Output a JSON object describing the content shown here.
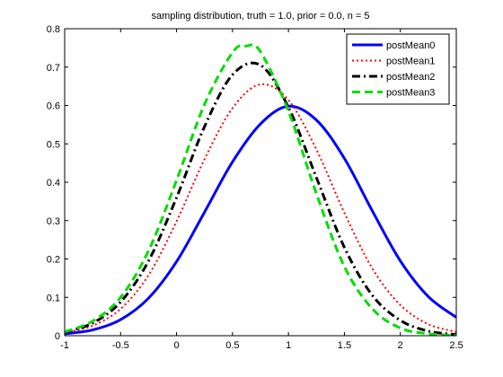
{
  "chart_data": {
    "type": "line",
    "title": "sampling distribution, truth = 1.0, prior = 0.0, n = 5",
    "xlabel": "",
    "ylabel": "",
    "xlim": [
      -1,
      2.5
    ],
    "ylim": [
      0,
      0.8
    ],
    "xticks": [
      -1,
      -0.5,
      0,
      0.5,
      1,
      1.5,
      2,
      2.5
    ],
    "yticks": [
      0,
      0.1,
      0.2,
      0.3,
      0.4,
      0.5,
      0.6,
      0.7,
      0.8
    ],
    "xtick_labels": [
      "-1",
      "-0.5",
      "0",
      "0.5",
      "1",
      "1.5",
      "2",
      "2.5"
    ],
    "ytick_labels": [
      "0",
      "0.1",
      "0.2",
      "0.3",
      "0.4",
      "0.5",
      "0.6",
      "0.7",
      "0.8"
    ],
    "grid": false,
    "legend_position": "top-right",
    "series": [
      {
        "name": "postMean0",
        "color": "#0000ff",
        "style": "solid",
        "x": [
          -1.0,
          -0.75,
          -0.5,
          -0.25,
          0.0,
          0.25,
          0.5,
          0.75,
          1.0,
          1.25,
          1.5,
          1.75,
          2.0,
          2.25,
          2.5
        ],
        "y": [
          0.005,
          0.015,
          0.042,
          0.098,
          0.193,
          0.322,
          0.453,
          0.552,
          0.598,
          0.562,
          0.462,
          0.325,
          0.195,
          0.102,
          0.048
        ]
      },
      {
        "name": "postMean1",
        "color": "#ff0000",
        "style": "dotted",
        "x": [
          -1.0,
          -0.75,
          -0.5,
          -0.25,
          0.0,
          0.25,
          0.5,
          0.75,
          1.0,
          1.25,
          1.5,
          1.75,
          2.0,
          2.25,
          2.5
        ],
        "y": [
          0.008,
          0.026,
          0.07,
          0.158,
          0.298,
          0.46,
          0.593,
          0.655,
          0.614,
          0.485,
          0.32,
          0.175,
          0.08,
          0.03,
          0.01
        ]
      },
      {
        "name": "postMean2",
        "color": "#000000",
        "style": "dashdot",
        "x": [
          -1.0,
          -0.75,
          -0.5,
          -0.25,
          0.0,
          0.25,
          0.5,
          0.75,
          1.0,
          1.25,
          1.5,
          1.75,
          2.0,
          2.25,
          2.5
        ],
        "y": [
          0.009,
          0.033,
          0.088,
          0.195,
          0.36,
          0.545,
          0.68,
          0.705,
          0.595,
          0.412,
          0.23,
          0.105,
          0.04,
          0.012,
          0.003
        ]
      },
      {
        "name": "postMean3",
        "color": "#00dd00",
        "style": "dashed",
        "x": [
          -1.0,
          -0.75,
          -0.5,
          -0.25,
          0.0,
          0.25,
          0.5,
          0.625,
          0.75,
          1.0,
          1.25,
          1.5,
          1.75,
          2.0,
          2.25,
          2.5
        ],
        "y": [
          0.01,
          0.038,
          0.1,
          0.222,
          0.405,
          0.603,
          0.738,
          0.755,
          0.74,
          0.585,
          0.37,
          0.18,
          0.07,
          0.02,
          0.005,
          0.001
        ]
      }
    ]
  }
}
